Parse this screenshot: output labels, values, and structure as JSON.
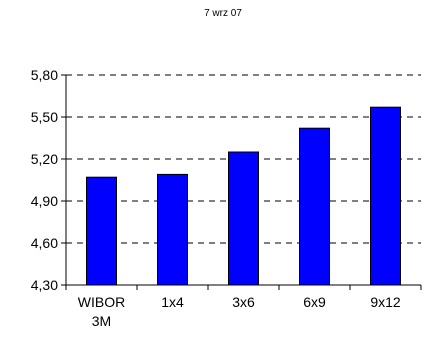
{
  "chart_data": {
    "type": "bar",
    "title": "7 wrz 07",
    "categories": [
      [
        "WIBOR",
        "3M"
      ],
      [
        "1x4"
      ],
      [
        "3x6"
      ],
      [
        "6x9"
      ],
      [
        "9x12"
      ]
    ],
    "values": [
      5.07,
      5.09,
      5.25,
      5.42,
      5.57
    ],
    "ylim": [
      4.3,
      5.8
    ],
    "yticks": [
      "4,30",
      "4,60",
      "4,90",
      "5,20",
      "5,50",
      "5,80"
    ],
    "ytick_values": [
      4.3,
      4.6,
      4.9,
      5.2,
      5.5,
      5.8
    ],
    "grid": "horizontal-dashed",
    "xlabel": "",
    "ylabel": "",
    "colors": {
      "bar_fill": "#0000ff",
      "bar_stroke": "#000000",
      "grid": "#000000",
      "axis": "#000000"
    }
  }
}
